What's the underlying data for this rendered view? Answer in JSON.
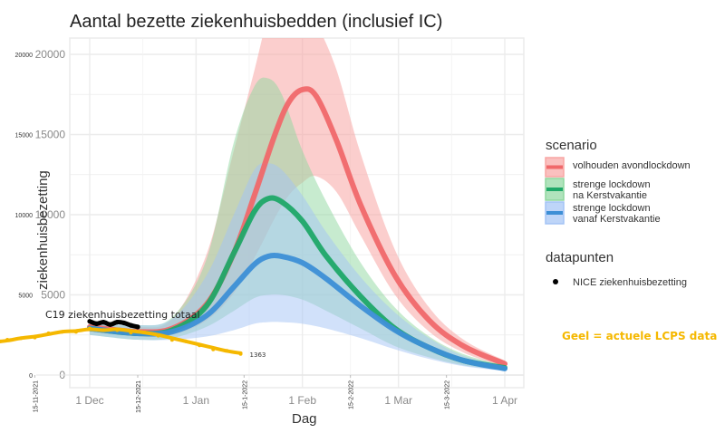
{
  "chart_data": {
    "type": "line",
    "title": "Aantal bezette ziekenhuisbedden (inclusief IC)",
    "xlabel": "Dag",
    "ylabel": "ziekenhuisbezetting",
    "ylim": [
      0,
      21000
    ],
    "xlim_days": [
      -16,
      139
    ],
    "x_unit": "days since 2021-11-15",
    "grid": true,
    "y_ticks": [
      0,
      5000,
      10000,
      15000,
      20000
    ],
    "y_tick_labels": [
      "0",
      "5000",
      "10000",
      "15000",
      "20000"
    ],
    "y_tick_labels_overlay": [
      "0",
      "5000",
      "10000",
      "15000",
      "20000"
    ],
    "x_ticks": [
      {
        "day": 16,
        "label": "1 Dec"
      },
      {
        "day": 47,
        "label": "1 Jan"
      },
      {
        "day": 78,
        "label": "1 Feb"
      },
      {
        "day": 106,
        "label": "1 Mar"
      },
      {
        "day": 137,
        "label": "1 Apr"
      }
    ],
    "x_ticks_overlay": [
      {
        "day": 0,
        "label": "15-11-2021"
      },
      {
        "day": 30,
        "label": "15-12-2021"
      },
      {
        "day": 61,
        "label": "15-1-2022"
      },
      {
        "day": 92,
        "label": "15-2-2022"
      },
      {
        "day": 120,
        "label": "15-3-2022"
      }
    ],
    "series": [
      {
        "name": "volhouden avondlockdown",
        "color": "#f0686a",
        "band_color": "#f8a5a4",
        "x": [
          16,
          30,
          40,
          50,
          58,
          64,
          70,
          74,
          78,
          82,
          88,
          95,
          105,
          115,
          125,
          137
        ],
        "values": [
          3000,
          2700,
          2900,
          4400,
          7600,
          11200,
          15000,
          17000,
          17800,
          17400,
          14600,
          10600,
          6200,
          3400,
          1800,
          700
        ],
        "lower": [
          2700,
          2400,
          2500,
          3400,
          5100,
          7300,
          9800,
          11200,
          12000,
          12400,
          11400,
          8700,
          5000,
          2700,
          1400,
          500
        ],
        "upper": [
          3300,
          3000,
          3500,
          7500,
          14000,
          19000,
          24000,
          24500,
          23500,
          22000,
          19000,
          13800,
          7800,
          4200,
          2200,
          900
        ]
      },
      {
        "name": "strenge lockdown na Kerstvakantie",
        "color": "#1fa868",
        "band_color": "#8fd79f",
        "x": [
          16,
          30,
          40,
          50,
          58,
          64,
          68,
          72,
          78,
          85,
          95,
          105,
          115,
          125,
          137
        ],
        "values": [
          2900,
          2600,
          2800,
          4300,
          7600,
          10200,
          11000,
          10800,
          9600,
          7400,
          4900,
          2900,
          1700,
          900,
          450
        ],
        "lower": [
          2500,
          2200,
          2300,
          3000,
          4000,
          4800,
          5000,
          5000,
          4700,
          4000,
          2900,
          1800,
          1100,
          600,
          300
        ],
        "upper": [
          3300,
          3100,
          3600,
          7200,
          14500,
          18000,
          18500,
          17500,
          14000,
          10800,
          7000,
          4200,
          2400,
          1300,
          600
        ]
      },
      {
        "name": "strenge lockdown vanaf Kerstvakantie",
        "color": "#3d8fd6",
        "band_color": "#a3c3f5",
        "x": [
          16,
          30,
          40,
          50,
          58,
          64,
          68,
          72,
          78,
          85,
          95,
          105,
          115,
          125,
          137
        ],
        "values": [
          2900,
          2600,
          2700,
          3700,
          5500,
          6900,
          7400,
          7400,
          7000,
          6000,
          4300,
          2800,
          1700,
          900,
          400
        ],
        "lower": [
          2500,
          2200,
          2200,
          2400,
          2800,
          3200,
          3300,
          3300,
          3200,
          2900,
          2300,
          1600,
          1000,
          550,
          250
        ],
        "upper": [
          3300,
          3100,
          3500,
          6200,
          10000,
          12800,
          13200,
          12800,
          11200,
          8900,
          6100,
          3900,
          2300,
          1200,
          550
        ]
      }
    ],
    "datapoints": {
      "name": "NICE ziekenhuisbezetting",
      "color": "#000000",
      "x": [
        16,
        18,
        20,
        22,
        24,
        26,
        28,
        30
      ],
      "values": [
        3350,
        3200,
        3300,
        3150,
        3300,
        3250,
        3100,
        3000
      ]
    },
    "lcps": {
      "name": "actuele LCPS data",
      "color": "#f5b800",
      "x": [
        -16,
        -12,
        -8,
        -4,
        0,
        4,
        8,
        12,
        16,
        20,
        24,
        28,
        32,
        36,
        40,
        44,
        48,
        52,
        56,
        60
      ],
      "values": [
        1950,
        2050,
        2150,
        2300,
        2400,
        2550,
        2700,
        2750,
        2850,
        2800,
        2850,
        2750,
        2650,
        2500,
        2300,
        2100,
        1900,
        1700,
        1500,
        1363
      ],
      "end_label": "1363"
    },
    "annotations": {
      "c19_label": "C19 ziekenhuisbezetting  totaal",
      "note": "Geel = actuele LCPS data",
      "note_color": "#f5b800"
    },
    "legend": {
      "placement": "right",
      "scenario_title": "scenario",
      "scenario_items": [
        {
          "lines": [
            "volhouden avondlockdown"
          ],
          "color": "#f0686a",
          "band_color": "#f8a5a4"
        },
        {
          "lines": [
            "strenge lockdown",
            " na Kerstvakantie"
          ],
          "color": "#1fa868",
          "band_color": "#8fd79f"
        },
        {
          "lines": [
            "strenge lockdown",
            " vanaf Kerstvakantie"
          ],
          "color": "#3d8fd6",
          "band_color": "#a3c3f5"
        }
      ],
      "datapoints_title": "datapunten",
      "datapoints_item": "NICE ziekenhuisbezetting"
    }
  }
}
